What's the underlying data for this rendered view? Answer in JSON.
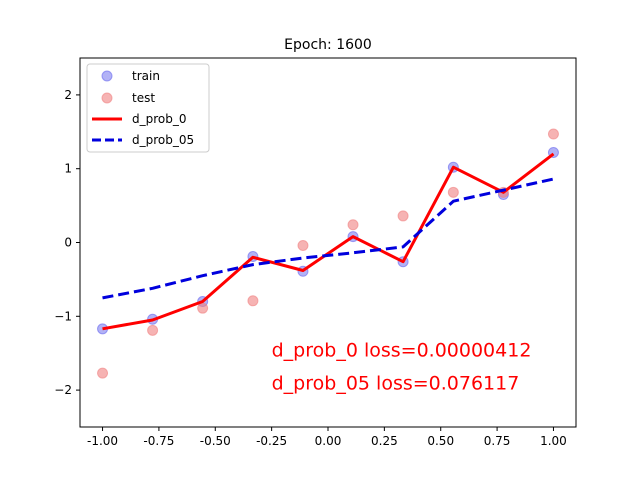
{
  "chart_data": {
    "type": "line",
    "title": "Epoch: 1600",
    "xlabel": "",
    "ylabel": "",
    "xlim": [
      -1.1,
      1.1
    ],
    "ylim": [
      -2.5,
      2.5
    ],
    "grid": false,
    "legend_placement": "top-left",
    "x_ticks": [
      "-1.00",
      "-0.75",
      "-0.50",
      "-0.25",
      "0.00",
      "0.25",
      "0.50",
      "0.75",
      "1.00"
    ],
    "y_ticks": [
      "-2",
      "-1",
      "0",
      "1",
      "2"
    ],
    "series": [
      {
        "name": "train",
        "kind": "scatter",
        "color": "#6666ee",
        "x": [
          -1.0,
          -0.778,
          -0.556,
          -0.333,
          -0.111,
          0.111,
          0.333,
          0.556,
          0.778,
          1.0
        ],
        "y": [
          -1.17,
          -1.04,
          -0.8,
          -0.19,
          -0.39,
          0.08,
          -0.26,
          1.02,
          0.65,
          1.22
        ]
      },
      {
        "name": "test",
        "kind": "scatter",
        "color": "#f08080",
        "x": [
          -1.0,
          -0.778,
          -0.556,
          -0.333,
          -0.111,
          0.111,
          0.333,
          0.556,
          0.778,
          1.0
        ],
        "y": [
          -1.77,
          -1.19,
          -0.89,
          -0.79,
          -0.04,
          0.24,
          0.36,
          0.68,
          0.68,
          1.47
        ]
      },
      {
        "name": "d_prob_0",
        "kind": "line",
        "style": "solid",
        "color": "#ff0000",
        "x": [
          -1.0,
          -0.778,
          -0.556,
          -0.333,
          -0.111,
          0.111,
          0.333,
          0.556,
          0.778,
          1.0
        ],
        "y": [
          -1.17,
          -1.05,
          -0.8,
          -0.2,
          -0.38,
          0.08,
          -0.26,
          1.02,
          0.68,
          1.2
        ]
      },
      {
        "name": "d_prob_05",
        "kind": "line",
        "style": "dashed",
        "color": "#0000dd",
        "x": [
          -1.0,
          -0.778,
          -0.556,
          -0.333,
          -0.111,
          0.111,
          0.333,
          0.556,
          0.778,
          1.0
        ],
        "y": [
          -0.75,
          -0.62,
          -0.45,
          -0.3,
          -0.21,
          -0.14,
          -0.06,
          0.56,
          0.71,
          0.86
        ]
      }
    ],
    "annotations": [
      {
        "text": "d_prob_0 loss=0.00000412",
        "x": -0.25,
        "y": -1.45,
        "color": "#ff0000"
      },
      {
        "text": "d_prob_05 loss=0.076117",
        "x": -0.25,
        "y": -1.9,
        "color": "#ff0000"
      }
    ]
  }
}
